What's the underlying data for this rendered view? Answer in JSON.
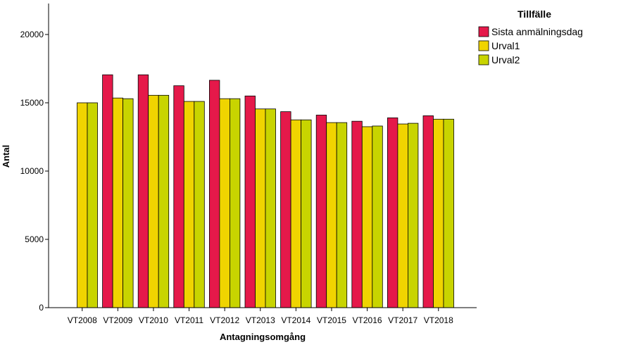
{
  "chart_data": {
    "type": "bar",
    "xlabel": "Antagningsomgång",
    "ylabel": "Antal",
    "ylim": [
      0,
      20000
    ],
    "yticks": [
      0,
      5000,
      10000,
      15000,
      20000
    ],
    "grid": false,
    "legend": {
      "title": "Tillfälle",
      "placement": "top-right"
    },
    "categories": [
      "VT2008",
      "VT2009",
      "VT2010",
      "VT2011",
      "VT2012",
      "VT2013",
      "VT2014",
      "VT2015",
      "VT2016",
      "VT2017",
      "VT2018"
    ],
    "series": [
      {
        "name": "Sista anmälningsdag",
        "color": "#e5194a",
        "values": [
          null,
          17050,
          17050,
          16250,
          16650,
          15500,
          14350,
          14100,
          13650,
          13900,
          14050
        ]
      },
      {
        "name": "Urval1",
        "color": "#f0d400",
        "values": [
          15000,
          15350,
          15550,
          15100,
          15300,
          14550,
          13750,
          13550,
          13250,
          13450,
          13800
        ]
      },
      {
        "name": "Urval2",
        "color": "#c8d400",
        "values": [
          15000,
          15300,
          15550,
          15100,
          15300,
          14550,
          13750,
          13550,
          13300,
          13500,
          13800
        ]
      }
    ]
  }
}
